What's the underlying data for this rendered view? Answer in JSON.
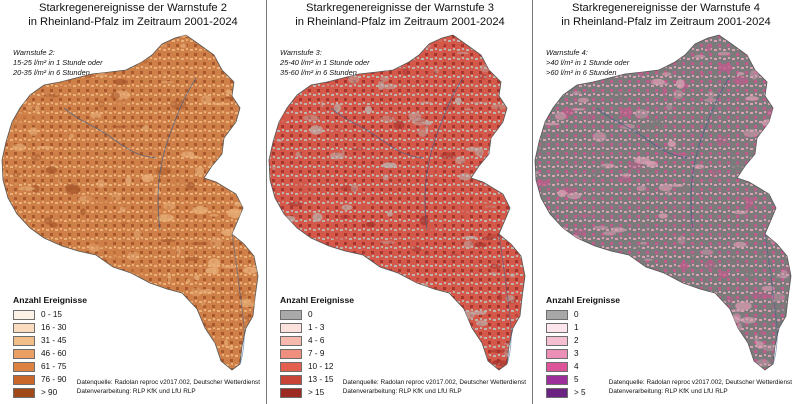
{
  "legend_title": "Anzahl Ereignisse",
  "source_line1": "Datenquelle: Radolan reproc v2017.002, Deutscher Wetterdienst",
  "source_line2": "Datenverarbeitung: RLP KfK und LfU RLP",
  "panels": [
    {
      "title_line1": "Starkregenereignisse der Warnstufe 2",
      "title_line2": "in Rheinland-Pfalz im Zeitraum 2001-2024",
      "def_line1": "Warnstufe 2:",
      "def_line2": "15-25 l/m² in 1 Stunde oder",
      "def_line3": "20-35 l/m² in 6 Stunden",
      "map_fill": "#cf8048",
      "map_light": "#e9b07a",
      "map_dark": "#a8582c",
      "legend": [
        {
          "label": "0 - 15",
          "color": "#fdf2e6"
        },
        {
          "label": "16 - 30",
          "color": "#f9dcbd"
        },
        {
          "label": "31 - 45",
          "color": "#f2bf8b"
        },
        {
          "label": "46 - 60",
          "color": "#e9a062"
        },
        {
          "label": "61 - 75",
          "color": "#dd8240"
        },
        {
          "label": "76 - 90",
          "color": "#c9662a"
        },
        {
          "label": "> 90",
          "color": "#a04a1a"
        }
      ]
    },
    {
      "title_line1": "Starkregenereignisse der Warnstufe 3",
      "title_line2": "in Rheinland-Pfalz im Zeitraum 2001-2024",
      "def_line1": "Warnstufe 3:",
      "def_line2": "25-40 l/m² in 1 Stunde oder",
      "def_line3": "35-60 l/m² in 6 Stunden",
      "map_fill": "#d4594a",
      "map_light": "#bdb3ae",
      "map_dark": "#a8342e",
      "legend": [
        {
          "label": "0",
          "color": "#a9a9a9"
        },
        {
          "label": "1 - 3",
          "color": "#fbe2dc"
        },
        {
          "label": "4 - 6",
          "color": "#f6b9ad"
        },
        {
          "label": "7 - 9",
          "color": "#f08f7d"
        },
        {
          "label": "10 - 12",
          "color": "#e3604f"
        },
        {
          "label": "13 - 15",
          "color": "#c94438"
        },
        {
          "label": "> 15",
          "color": "#9c2a22"
        }
      ]
    },
    {
      "title_line1": "Starkregenereignisse der Warnstufe 4",
      "title_line2": "in Rheinland-Pfalz im Zeitraum 2001-2024",
      "def_line1": "Warnstufe 4:",
      "def_line2": ">40 l/m² in 1 Stunde oder",
      "def_line3": ">60 l/m² in 6 Stunden",
      "map_fill": "#7b7b7b",
      "map_light": "#d9a0b4",
      "map_dark": "#c25a8c",
      "legend": [
        {
          "label": "0",
          "color": "#a8a8a8"
        },
        {
          "label": "1",
          "color": "#fce6ec"
        },
        {
          "label": "2",
          "color": "#f5bfd2"
        },
        {
          "label": "3",
          "color": "#ec8fb6"
        },
        {
          "label": "4",
          "color": "#dc5599"
        },
        {
          "label": "5",
          "color": "#9c2f9a"
        },
        {
          "label": "> 5",
          "color": "#6a2380"
        }
      ]
    }
  ]
}
